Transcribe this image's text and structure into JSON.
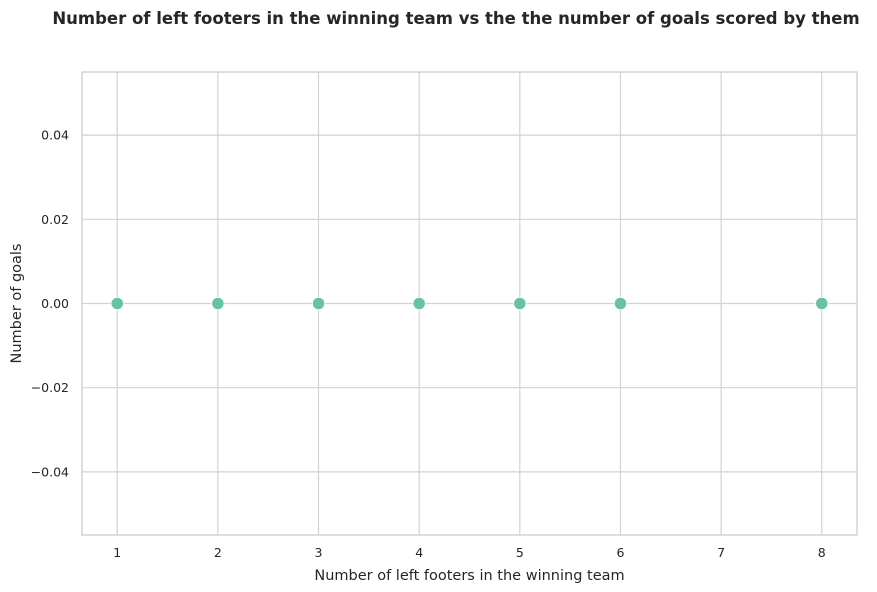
{
  "chart_data": {
    "type": "scatter",
    "title": "Number of left footers in the winning team vs the the number of goals scored by them",
    "xlabel": "Number of left footers in the winning team",
    "ylabel": "Number of goals",
    "x": [
      1,
      2,
      3,
      4,
      5,
      6,
      8
    ],
    "y": [
      0,
      0,
      0,
      0,
      0,
      0,
      0
    ],
    "xlim": [
      0.65,
      8.35
    ],
    "ylim": [
      -0.055,
      0.055
    ],
    "xticks": [
      1,
      2,
      3,
      4,
      5,
      6,
      7,
      8
    ],
    "xtick_labels": [
      "1",
      "2",
      "3",
      "4",
      "5",
      "6",
      "7",
      "8"
    ],
    "yticks": [
      -0.04,
      -0.02,
      0.0,
      0.02,
      0.04
    ],
    "ytick_labels": [
      "−0.04",
      "−0.02",
      "0.00",
      "0.02",
      "0.04"
    ],
    "grid": true,
    "marker_color": "#66c2a5"
  }
}
